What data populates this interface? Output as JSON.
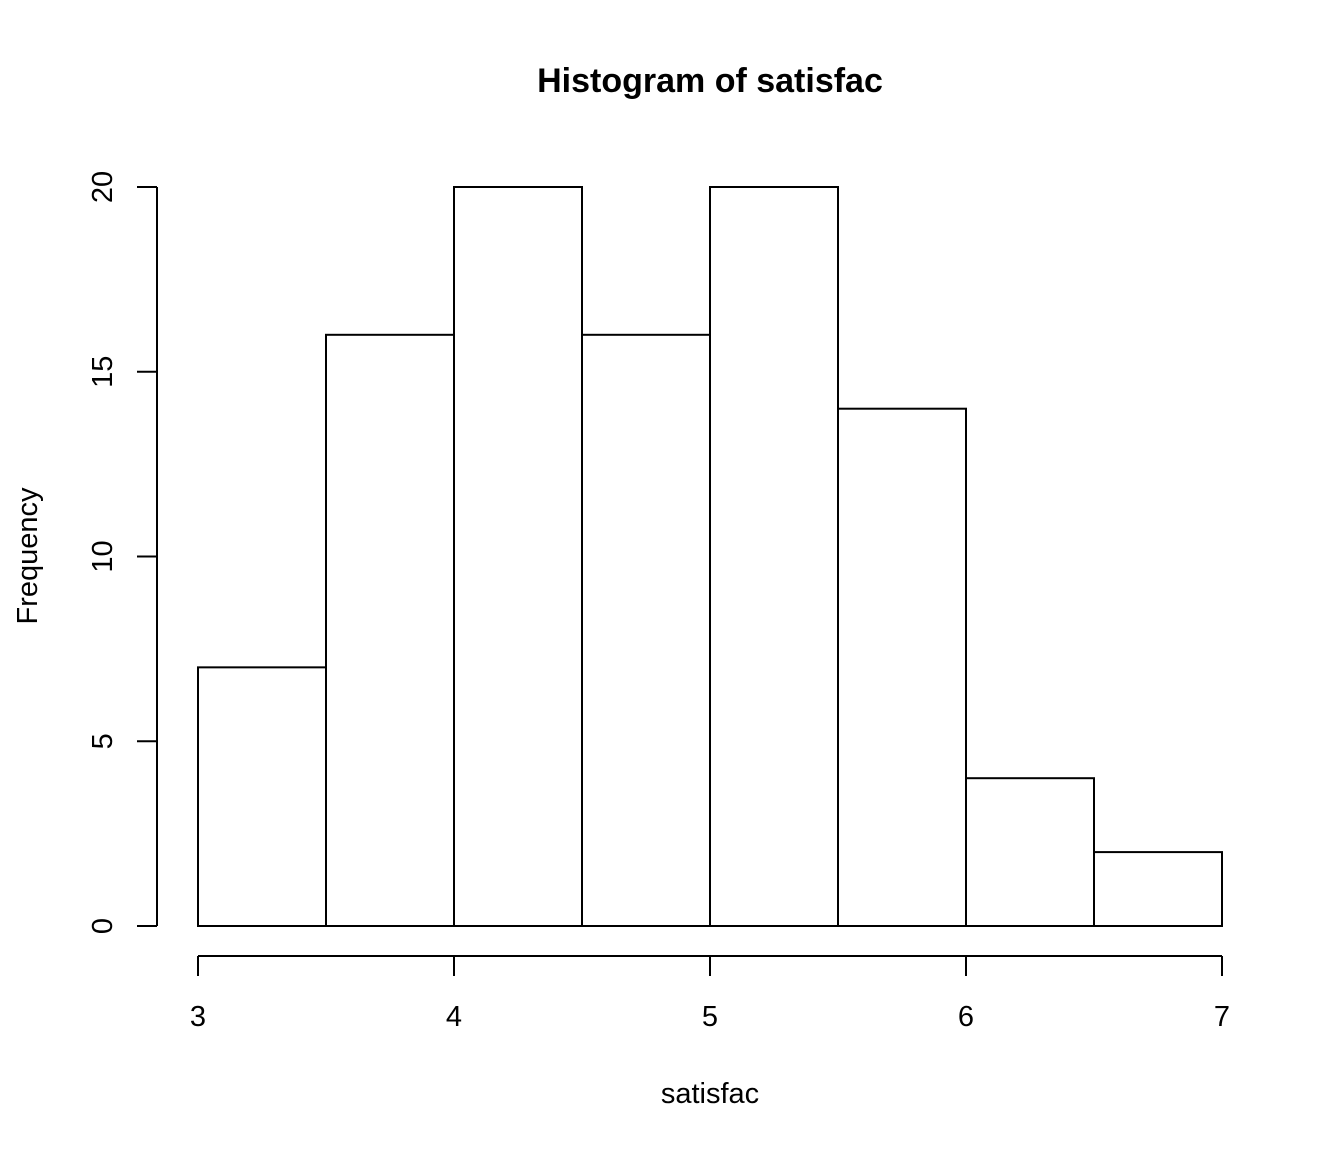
{
  "chart_data": {
    "type": "bar",
    "title": "Histogram of satisfac",
    "xlabel": "satisfac",
    "ylabel": "Frequency",
    "bins": [
      {
        "start": 3.0,
        "end": 3.5,
        "count": 7
      },
      {
        "start": 3.5,
        "end": 4.0,
        "count": 16
      },
      {
        "start": 4.0,
        "end": 4.5,
        "count": 20
      },
      {
        "start": 4.5,
        "end": 5.0,
        "count": 16
      },
      {
        "start": 5.0,
        "end": 5.5,
        "count": 20
      },
      {
        "start": 5.5,
        "end": 6.0,
        "count": 14
      },
      {
        "start": 6.0,
        "end": 6.5,
        "count": 4
      },
      {
        "start": 6.5,
        "end": 7.0,
        "count": 2
      }
    ],
    "xlim": [
      3,
      7
    ],
    "ylim": [
      0,
      20
    ],
    "x_ticks": [
      "3",
      "4",
      "5",
      "6",
      "7"
    ],
    "y_ticks": [
      "0",
      "5",
      "10",
      "15",
      "20"
    ],
    "grid": false,
    "bar_fill": "#ffffff",
    "bar_stroke": "#000000"
  }
}
